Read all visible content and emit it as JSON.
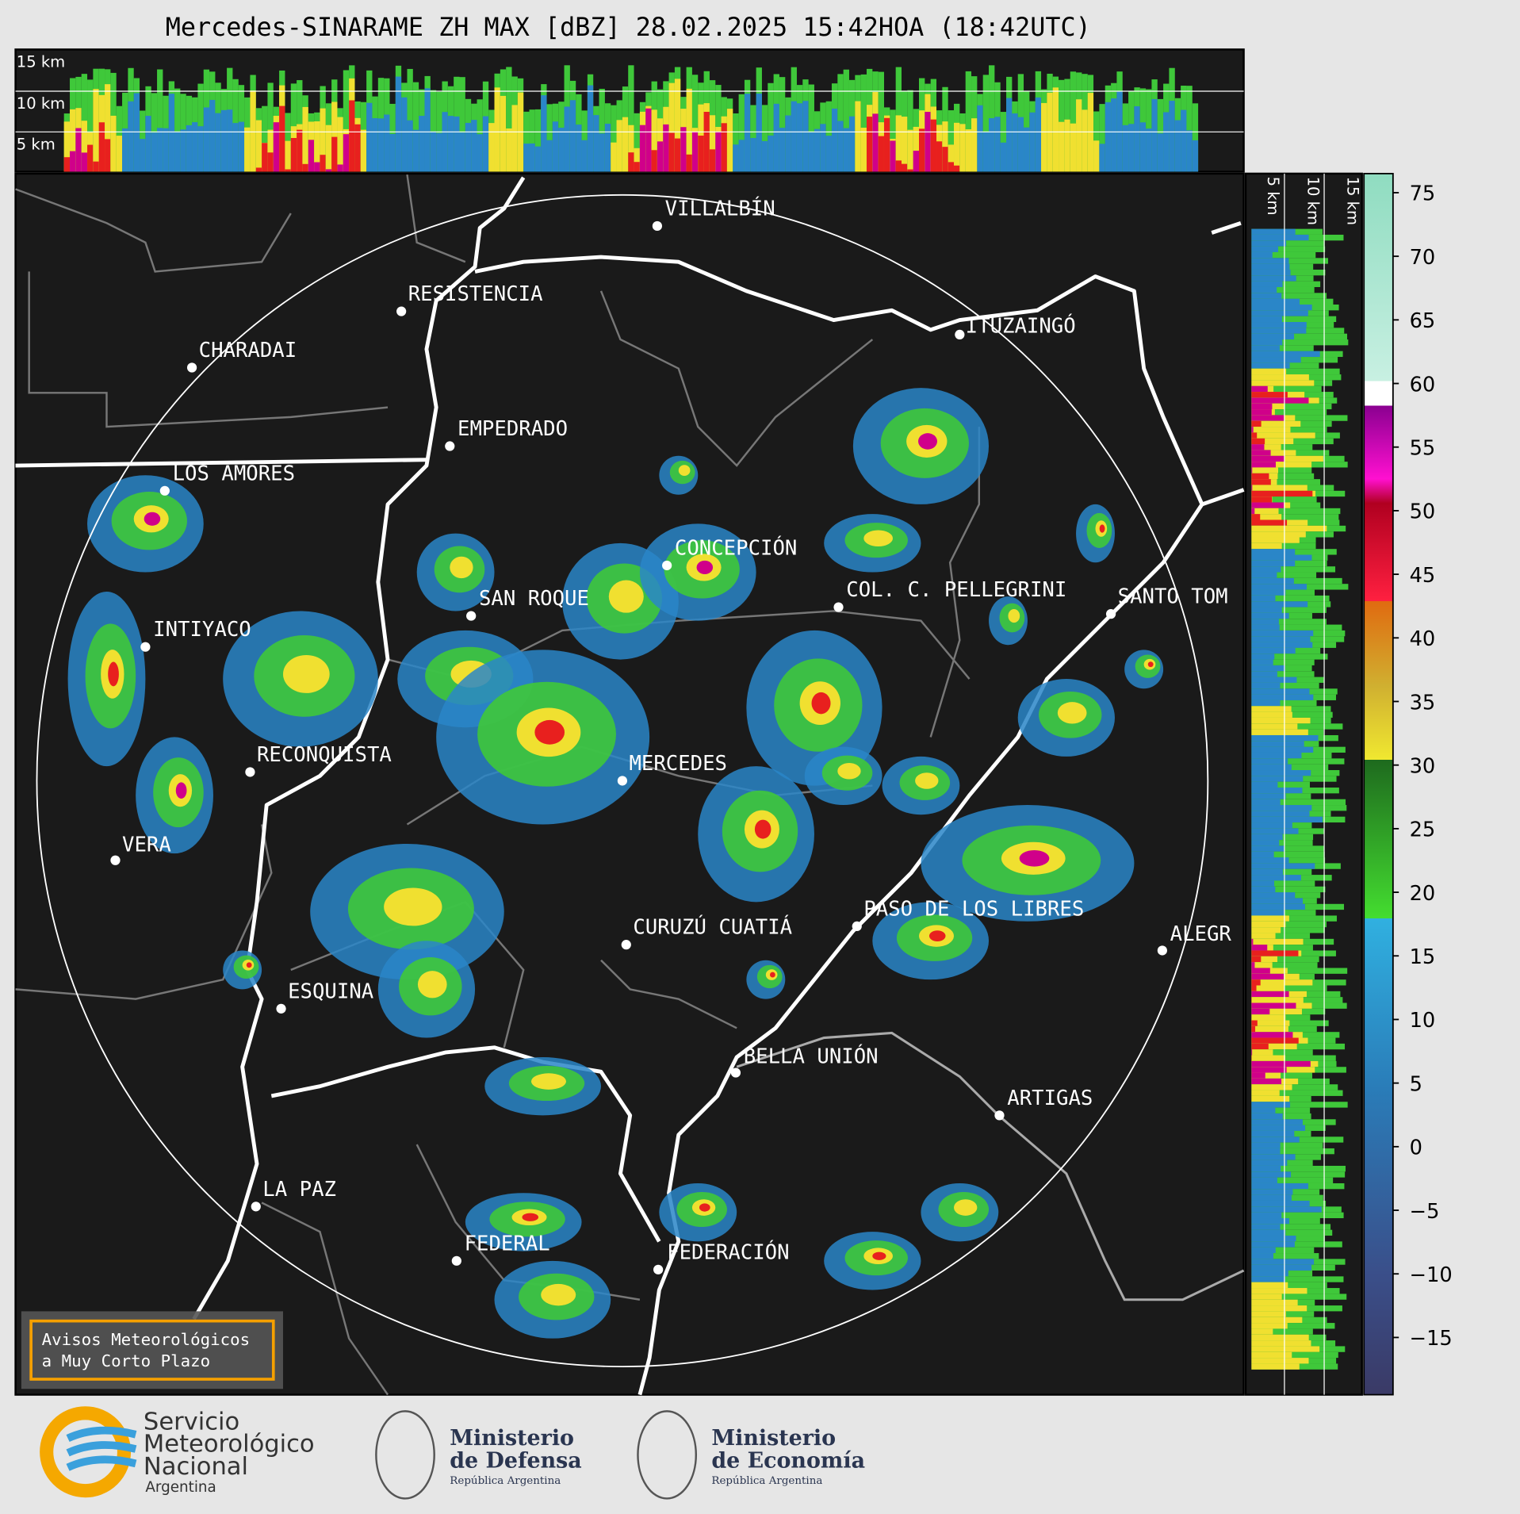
{
  "header": {
    "title": "Mercedes-SINARAME ZH MAX [dBZ] 28.02.2025 15:42HOA (18:42UTC)"
  },
  "vertical_section": {
    "height_labels": [
      "15 km",
      "10 km",
      "5 km"
    ]
  },
  "side_section": {
    "height_labels": [
      "5 km",
      "10 km",
      "15 km"
    ]
  },
  "map": {
    "cities": [
      "VILLALBÍN",
      "RESISTENCIA",
      "CHARADAI",
      "ITUZAINGÓ",
      "EMPEDRADO",
      "LOS AMORES",
      "CONCEPCIÓN",
      "COL. C. PELLEGRINI",
      "SANTO TOM",
      "SAN ROQUE",
      "INTIYACO",
      "RECONQUISTA",
      "MERCEDES",
      "VERA",
      "CURUZÚ CUATIÁ",
      "PASO DE LOS LIBRES",
      "ALEGR",
      "ESQUINA",
      "BELLA UNIÓN",
      "ARTIGAS",
      "LA PAZ",
      "FEDERAL",
      "FEDERACIÓN"
    ]
  },
  "colorbar": {
    "ylim": [
      -19.5,
      76.5
    ],
    "ticks": [
      75,
      70,
      65,
      60,
      55,
      50,
      45,
      40,
      35,
      30,
      25,
      20,
      15,
      10,
      5,
      0,
      {
        "value": -5,
        "label": "−5"
      },
      {
        "value": -10,
        "label": "−10"
      },
      {
        "value": -15,
        "label": "−15"
      }
    ]
  },
  "legend_box": {
    "lines": [
      "Avisos Meteorológicos",
      "a Muy Corto Plazo"
    ]
  },
  "logos": {
    "smn": [
      "Servicio",
      "Meteorológico",
      "Nacional",
      "Argentina"
    ],
    "defensa": [
      "Ministerio",
      "de Defensa",
      "República Argentina"
    ],
    "economia": [
      "Ministerio",
      "de Economía",
      "República Argentina"
    ]
  }
}
